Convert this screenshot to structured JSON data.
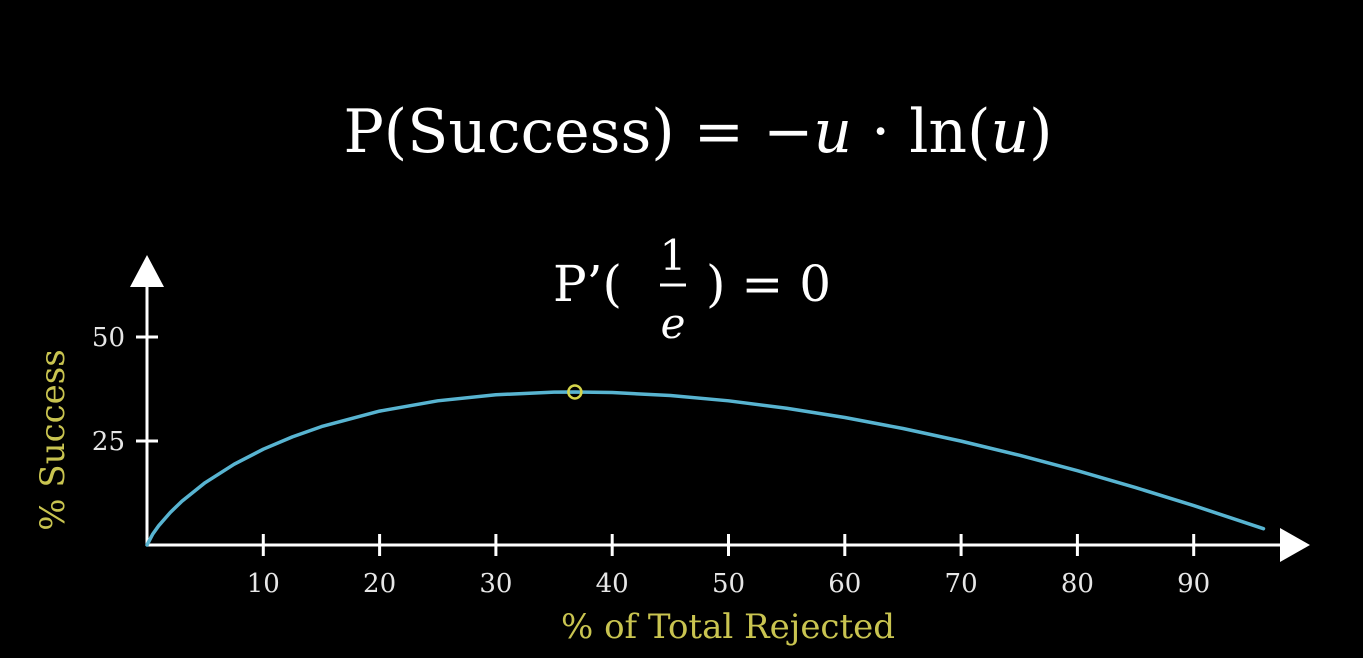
{
  "equation": {
    "main_prefix": "P(Success) = −",
    "main_var1": "u",
    "main_dot": " · ln(",
    "main_var2": "u",
    "main_suffix": ")",
    "deriv_prefix": "P’(",
    "deriv_numerator": "1",
    "deriv_denominator": "e",
    "deriv_suffix": ") = 0"
  },
  "chart_data": {
    "type": "line",
    "title": "",
    "xlabel": "% of Total Rejected",
    "ylabel": "% Success",
    "xlim": [
      0,
      100
    ],
    "ylim": [
      0,
      60
    ],
    "x_ticks": [
      10,
      20,
      30,
      40,
      50,
      60,
      70,
      80,
      90
    ],
    "x_tick_labels": [
      "10",
      "20",
      "30",
      "40",
      "50",
      "60",
      "70",
      "80",
      "90"
    ],
    "y_ticks": [
      25,
      50
    ],
    "y_tick_labels": [
      "25",
      "50"
    ],
    "grid": false,
    "series": [
      {
        "x": [
          0.5,
          1,
          2,
          3,
          5,
          7.5,
          10,
          12.5,
          15,
          20,
          25,
          30,
          35,
          36.8,
          40,
          45,
          50,
          55,
          60,
          65,
          70,
          75,
          80,
          85,
          90,
          96
        ],
        "y": [
          2.65,
          4.61,
          7.82,
          10.52,
          14.98,
          19.43,
          23.03,
          25.99,
          28.46,
          32.19,
          34.66,
          36.12,
          36.74,
          36.79,
          36.65,
          35.93,
          34.66,
          32.88,
          30.65,
          28.0,
          24.97,
          21.58,
          17.85,
          13.81,
          9.48,
          3.92
        ]
      }
    ],
    "highlight_point": {
      "x": 36.79,
      "y": 36.79
    },
    "colors": {
      "curve": "#58b4d1",
      "highlight": "#d4d44a",
      "axis": "#ffffff",
      "axis_title": "#c9c450",
      "tick_label": "#e6e6e6",
      "background": "#000000"
    }
  }
}
